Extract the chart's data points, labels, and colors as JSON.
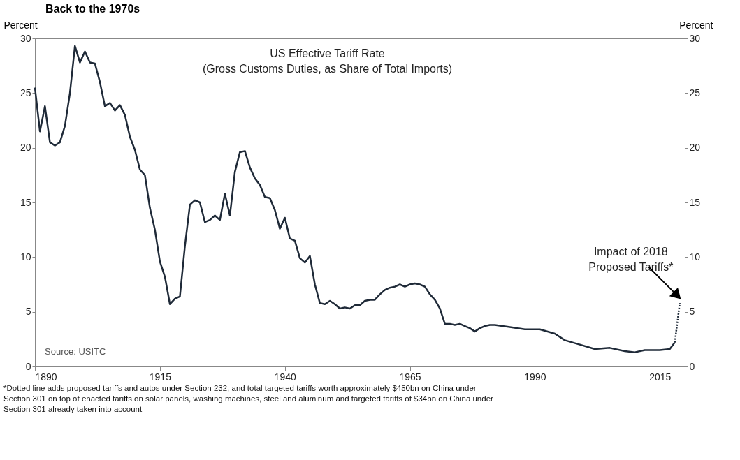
{
  "chart_data": {
    "type": "line",
    "title": "Back to the 1970s",
    "ylabel": "Percent",
    "y2label": "Percent",
    "x": [
      1890,
      1891,
      1892,
      1893,
      1894,
      1895,
      1896,
      1897,
      1898,
      1899,
      1900,
      1901,
      1902,
      1903,
      1904,
      1905,
      1906,
      1907,
      1908,
      1909,
      1910,
      1911,
      1912,
      1913,
      1914,
      1915,
      1916,
      1917,
      1918,
      1919,
      1920,
      1921,
      1922,
      1923,
      1924,
      1925,
      1926,
      1927,
      1928,
      1929,
      1930,
      1931,
      1932,
      1933,
      1934,
      1935,
      1936,
      1937,
      1938,
      1939,
      1940,
      1941,
      1942,
      1943,
      1944,
      1945,
      1946,
      1947,
      1948,
      1949,
      1950,
      1951,
      1952,
      1953,
      1954,
      1955,
      1956,
      1957,
      1958,
      1959,
      1960,
      1961,
      1962,
      1963,
      1964,
      1965,
      1966,
      1967,
      1968,
      1969,
      1970,
      1971,
      1972,
      1973,
      1974,
      1975,
      1976,
      1977,
      1978,
      1979,
      1980,
      1981,
      1982,
      1985,
      1988,
      1991,
      1994,
      1996,
      1999,
      2002,
      2005,
      2008,
      2010,
      2012,
      2015,
      2017,
      2018
    ],
    "series": [
      {
        "color": "#1f2a38",
        "line_style": "solid",
        "values": [
          25.5,
          21.5,
          23.8,
          20.5,
          20.2,
          20.5,
          22,
          25,
          29.3,
          27.8,
          28.8,
          27.8,
          27.7,
          26,
          23.8,
          24.1,
          23.4,
          23.9,
          23,
          21,
          19.8,
          18,
          17.5,
          14.5,
          12.5,
          9.6,
          8.2,
          5.7,
          6.2,
          6.4,
          11,
          14.8,
          15.2,
          15,
          13.2,
          13.4,
          13.8,
          13.4,
          15.8,
          13.8,
          17.8,
          19.6,
          19.7,
          18.2,
          17.2,
          16.6,
          15.5,
          15.4,
          14.3,
          12.6,
          13.6,
          11.7,
          11.5,
          9.9,
          9.5,
          10.1,
          7.5,
          5.8,
          5.7,
          6,
          5.7,
          5.3,
          5.4,
          5.3,
          5.6,
          5.6,
          6,
          6.1,
          6.1,
          6.6,
          7,
          7.2,
          7.3,
          7.5,
          7.3,
          7.5,
          7.6,
          7.5,
          7.3,
          6.6,
          6.1,
          5.3,
          3.9,
          3.9,
          3.8,
          3.9,
          3.7,
          3.5,
          3.2,
          3.5,
          3.7,
          3.8,
          3.8,
          3.6,
          3.4,
          3.4,
          3.0,
          2.4,
          2.0,
          1.6,
          1.7,
          1.4,
          1.3,
          1.5,
          1.5,
          1.6,
          2.2
        ]
      },
      {
        "color": "#1f2a38",
        "line_style": "dotted",
        "axis": "y2",
        "x": [
          2018,
          2019
        ],
        "values": [
          2.2,
          5.8
        ]
      }
    ],
    "xlim": [
      1890,
      2020
    ],
    "xticks": [
      1890,
      1915,
      1940,
      1965,
      1990,
      2015
    ],
    "ylim": [
      0,
      30
    ],
    "yticks": [
      0,
      5,
      10,
      15,
      20,
      25,
      30
    ],
    "y2lim": [
      0,
      30
    ],
    "y2ticks": [
      0,
      5,
      10,
      15,
      20,
      25,
      30
    ],
    "grid": false,
    "annotations": [
      "US Effective Tariff Rate\n(Gross Customs Duties, as Share of Total Imports)",
      "Source: USITC",
      "*Dotted line adds proposed tariffs and autos under Section 232, and total targeted tariffs worth approximately $450bn on China under\nSection 301 on top of enacted tariffs on solar panels, washing machines, steel and aluminum and targeted tariffs of $34bn on China under\nSection 301 already taken into account",
      {
        "text": "Impact of 2018\nProposed Tariffs*",
        "x": 2019,
        "y": 6
      }
    ]
  }
}
